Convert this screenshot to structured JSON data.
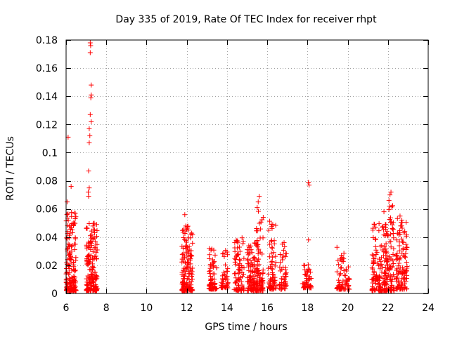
{
  "chart_data": {
    "type": "scatter",
    "title": "Day 335 of 2019, Rate Of TEC Index for receiver rhpt",
    "xlabel": "GPS time / hours",
    "ylabel": "ROTI / TECUs",
    "xlim": [
      6,
      24
    ],
    "ylim": [
      0,
      0.18
    ],
    "grid": true,
    "marker": "+",
    "marker_color": "#ff0000",
    "x_ticks": [
      6,
      8,
      10,
      12,
      14,
      16,
      18,
      20,
      22,
      24
    ],
    "y_ticks": [
      0,
      0.02,
      0.04,
      0.06,
      0.08,
      0.1,
      0.12,
      0.14,
      0.16,
      0.18
    ],
    "x_tick_labels": [
      "6",
      "8",
      "10",
      "12",
      "14",
      "16",
      "18",
      "20",
      "22",
      "24"
    ],
    "y_tick_labels": [
      "0",
      "0.02",
      "0.04",
      "0.06",
      "0.08",
      "0.1",
      "0.12",
      "0.14",
      "0.16",
      "0.18"
    ],
    "series": [
      {
        "name": "ROTI",
        "points": [
          [
            6.05,
            0.065
          ],
          [
            6.1,
            0.111
          ],
          [
            6.25,
            0.076
          ],
          [
            7.2,
            0.178
          ],
          [
            7.22,
            0.176
          ],
          [
            7.2,
            0.171
          ],
          [
            7.25,
            0.148
          ],
          [
            7.25,
            0.141
          ],
          [
            7.23,
            0.139
          ],
          [
            7.2,
            0.127
          ],
          [
            7.25,
            0.122
          ],
          [
            7.15,
            0.117
          ],
          [
            7.18,
            0.112
          ],
          [
            7.15,
            0.107
          ],
          [
            7.12,
            0.087
          ],
          [
            7.15,
            0.075
          ],
          [
            7.1,
            0.072
          ],
          [
            7.12,
            0.069
          ],
          [
            11.9,
            0.056
          ],
          [
            15.6,
            0.069
          ],
          [
            15.55,
            0.065
          ],
          [
            15.5,
            0.061
          ],
          [
            18.05,
            0.079
          ],
          [
            18.08,
            0.077
          ],
          [
            18.05,
            0.038
          ],
          [
            22.15,
            0.072
          ],
          [
            22.1,
            0.07
          ],
          [
            22.05,
            0.066
          ],
          [
            21.8,
            0.058
          ],
          [
            22.6,
            0.055
          ]
        ],
        "clusters": [
          {
            "x": [
              6.0,
              6.5
            ],
            "ymin": 0.002,
            "ymax": 0.058,
            "n": 170
          },
          {
            "x": [
              7.0,
              7.55
            ],
            "ymin": 0.002,
            "ymax": 0.05,
            "n": 170
          },
          {
            "x": [
              11.75,
              12.3
            ],
            "ymin": 0.002,
            "ymax": 0.048,
            "n": 160
          },
          {
            "x": [
              13.1,
              13.5
            ],
            "ymin": 0.003,
            "ymax": 0.034,
            "n": 70
          },
          {
            "x": [
              13.7,
              14.05
            ],
            "ymin": 0.004,
            "ymax": 0.034,
            "n": 45
          },
          {
            "x": [
              14.35,
              14.85
            ],
            "ymin": 0.002,
            "ymax": 0.04,
            "n": 80
          },
          {
            "x": [
              15.0,
              15.5
            ],
            "ymin": 0.002,
            "ymax": 0.036,
            "n": 100
          },
          {
            "x": [
              15.45,
              15.8
            ],
            "ymin": 0.002,
            "ymax": 0.059,
            "n": 80
          },
          {
            "x": [
              16.05,
              16.45
            ],
            "ymin": 0.003,
            "ymax": 0.052,
            "n": 70
          },
          {
            "x": [
              16.6,
              16.95
            ],
            "ymin": 0.003,
            "ymax": 0.038,
            "n": 50
          },
          {
            "x": [
              17.75,
              18.2
            ],
            "ymin": 0.004,
            "ymax": 0.022,
            "n": 50
          },
          {
            "x": [
              19.45,
              20.1
            ],
            "ymin": 0.003,
            "ymax": 0.033,
            "n": 70
          },
          {
            "x": [
              21.2,
              21.95
            ],
            "ymin": 0.002,
            "ymax": 0.05,
            "n": 150
          },
          {
            "x": [
              21.9,
              22.3
            ],
            "ymin": 0.002,
            "ymax": 0.065,
            "n": 90
          },
          {
            "x": [
              22.4,
              22.95
            ],
            "ymin": 0.003,
            "ymax": 0.055,
            "n": 110
          }
        ]
      }
    ]
  }
}
